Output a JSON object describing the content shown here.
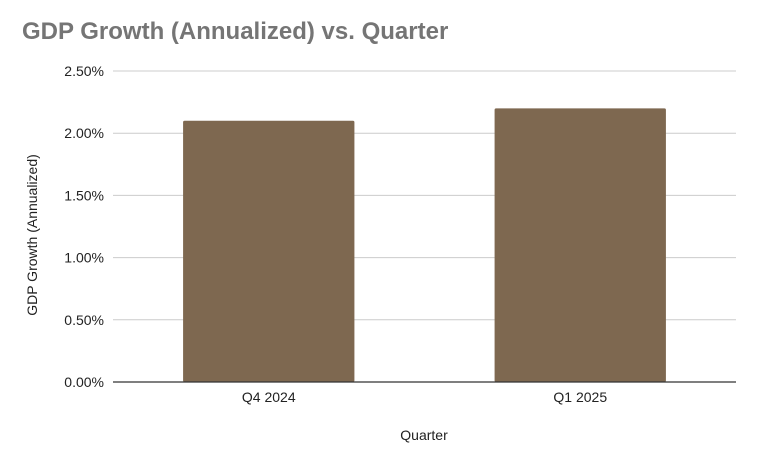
{
  "chart_data": {
    "type": "bar",
    "title": "GDP Growth (Annualized) vs. Quarter",
    "xlabel": "Quarter",
    "ylabel": "GDP Growth (Annualized)",
    "categories": [
      "Q4 2024",
      "Q1 2025"
    ],
    "values": [
      2.1,
      2.2
    ],
    "unit": "%",
    "ylim": [
      0,
      2.5
    ],
    "yticks": [
      0,
      0.5,
      1.0,
      1.5,
      2.0,
      2.5
    ],
    "ytick_labels": [
      "0.00%",
      "0.50%",
      "1.00%",
      "1.50%",
      "2.00%",
      "2.50%"
    ],
    "grid": true,
    "legend": "none",
    "colors": {
      "bar": "#7e6850",
      "grid": "#cccccc",
      "baseline": "#333333",
      "title": "#757575"
    }
  }
}
